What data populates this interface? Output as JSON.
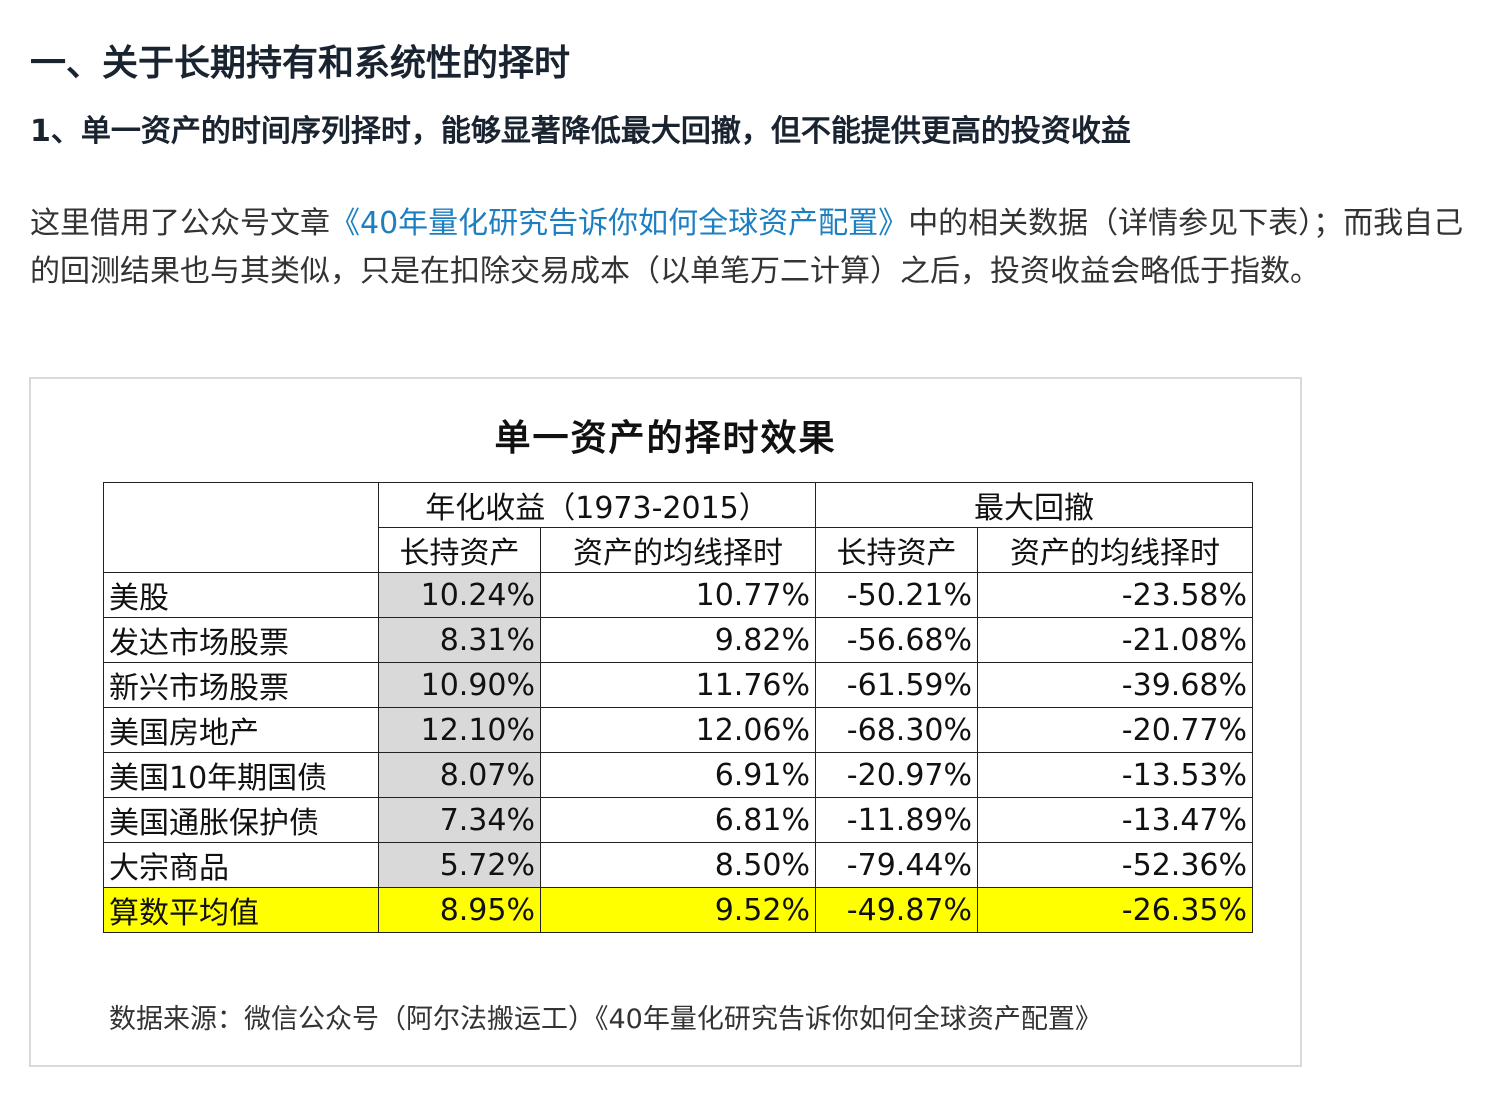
{
  "heading1": "一、关于长期持有和系统性的择时",
  "heading2": "1、单一资产的时间序列择时，能够显著降低最大回撤，但不能提供更高的投资收益",
  "paragraph": {
    "before": "这里借用了公众号文章",
    "link": "《40年量化研究告诉你如何全球资产配置》",
    "after": "中的相关数据（详情参见下表）；而我自己的回测结果也与其类似，只是在扣除交易成本（以单笔万二计算）之后，投资收益会略低于指数。"
  },
  "figure": {
    "title": "单一资产的择时效果",
    "group_headers": [
      "年化收益（1973-2015）",
      "最大回撤"
    ],
    "sub_headers": [
      "长持资产",
      "资产的均线择时",
      "长持资产",
      "资产的均线择时"
    ],
    "rows": [
      {
        "label": "美股",
        "v": [
          "10.24%",
          "10.77%",
          "-50.21%",
          "-23.58%"
        ]
      },
      {
        "label": "发达市场股票",
        "v": [
          "8.31%",
          "9.82%",
          "-56.68%",
          "-21.08%"
        ]
      },
      {
        "label": "新兴市场股票",
        "v": [
          "10.90%",
          "11.76%",
          "-61.59%",
          "-39.68%"
        ]
      },
      {
        "label": "美国房地产",
        "v": [
          "12.10%",
          "12.06%",
          "-68.30%",
          "-20.77%"
        ]
      },
      {
        "label": "美国10年期国债",
        "v": [
          "8.07%",
          "6.91%",
          "-20.97%",
          "-13.53%"
        ]
      },
      {
        "label": "美国通胀保护债",
        "v": [
          "7.34%",
          "6.81%",
          "-11.89%",
          "-13.47%"
        ]
      },
      {
        "label": "大宗商品",
        "v": [
          "5.72%",
          "8.50%",
          "-79.44%",
          "-52.36%"
        ]
      },
      {
        "label": "算数平均值",
        "v": [
          "8.95%",
          "9.52%",
          "-49.87%",
          "-26.35%"
        ]
      }
    ],
    "source": "数据来源：微信公众号（阿尔法搬运工）《40年量化研究告诉你如何全球资产配置》",
    "colors": {
      "highlight": "#ffff00",
      "negative": "#e00000",
      "shaded": "#d9d9d9",
      "link": "#1e7fc0"
    }
  }
}
